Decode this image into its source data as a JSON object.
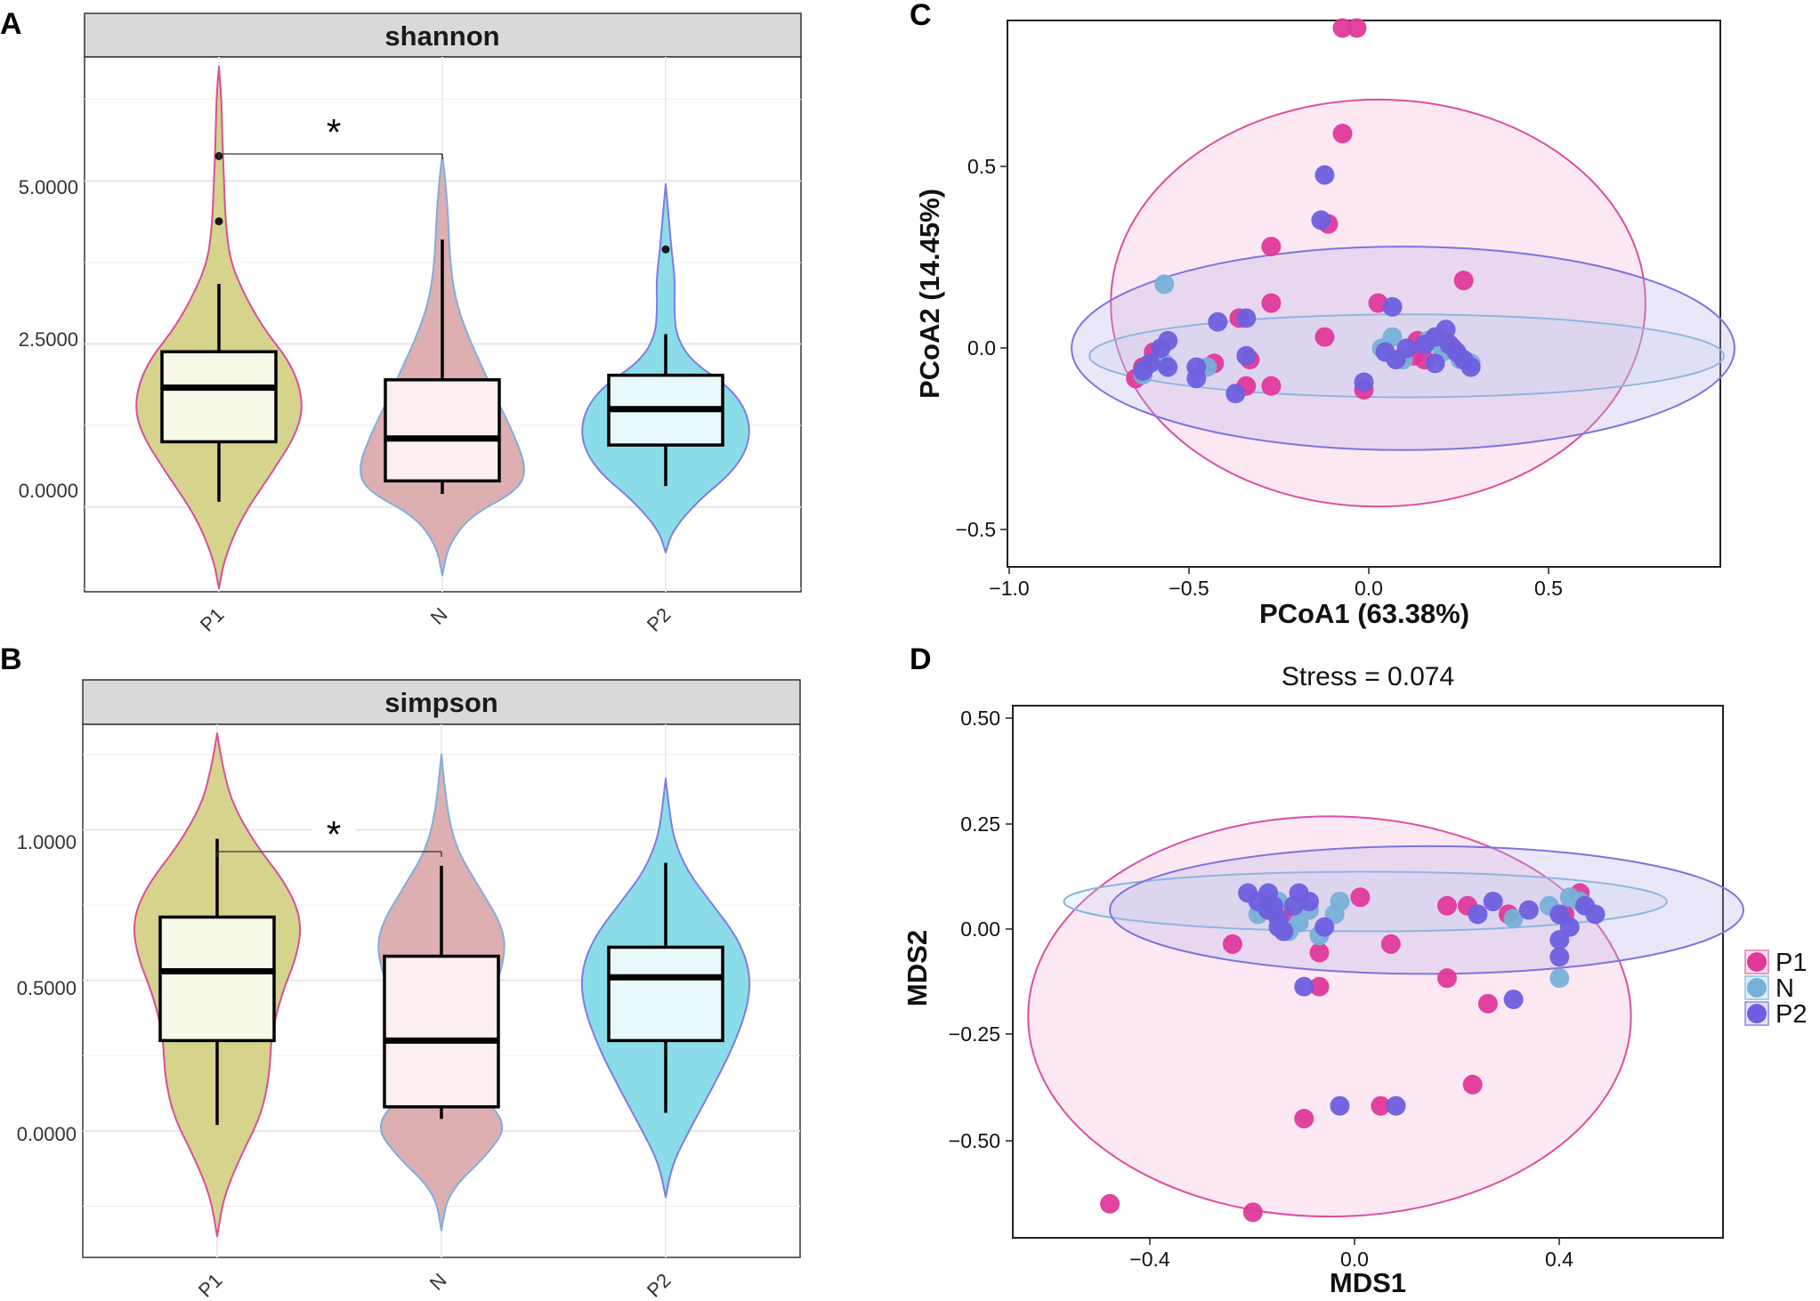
{
  "panels": {
    "A": {
      "letter": "A",
      "strip": "shannon",
      "signif": "*",
      "y_ticks": [
        "0.0000",
        "2.5000",
        "5.0000"
      ],
      "y_tick_values": [
        0,
        2.5,
        5
      ],
      "x_labels": [
        "P1",
        "N",
        "P2"
      ]
    },
    "B": {
      "letter": "B",
      "strip": "simpson",
      "signif": "*",
      "y_ticks": [
        "0.0000",
        "0.5000",
        "1.0000"
      ],
      "y_tick_values": [
        0,
        0.5,
        1
      ],
      "x_labels": [
        "P1",
        "N",
        "P2"
      ]
    },
    "C": {
      "letter": "C",
      "xlabel": "PCoA1 (63.38%)",
      "ylabel": "PCoA2 (14.45%)",
      "x_ticks": [
        "−1.0",
        "−0.5",
        "0.0",
        "0.5"
      ],
      "y_ticks": [
        "−0.5",
        "0.0",
        "0.5"
      ]
    },
    "D": {
      "letter": "D",
      "stress": "Stress = 0.074",
      "xlabel": "MDS1",
      "ylabel": "MDS2",
      "x_ticks": [
        "−0.4",
        "0.0",
        "0.4"
      ],
      "y_ticks": [
        "−0.50",
        "−0.25",
        "0.00",
        "0.25",
        "0.50"
      ]
    }
  },
  "legend": {
    "items": [
      {
        "label": "P1",
        "color": "#e0399a"
      },
      {
        "label": "N",
        "color": "#77b0d8"
      },
      {
        "label": "P2",
        "color": "#6e5fde"
      }
    ]
  },
  "colors": {
    "P1_violin": "#d5d38c",
    "P1_violin_stroke": "#d84f97",
    "N_violin": "#ddafb1",
    "N_violin_stroke": "#7faede",
    "P2_violin": "#8adde8",
    "P2_violin_stroke": "#7f7be4",
    "P1_box": "#f7f8e7",
    "N_box": "#fbeeef",
    "P2_box": "#e9f8fb",
    "strip_bg": "#d9d9d9",
    "grid": "#ebebeb"
  },
  "chart_data": [
    {
      "type": "violin",
      "panel": "A",
      "title": "shannon",
      "xlabel": "",
      "ylabel": "",
      "categories": [
        "P1",
        "N",
        "P2"
      ],
      "ylim": [
        -1.3,
        6.9
      ],
      "violins": [
        {
          "name": "P1",
          "min": 0.08,
          "q1": 1.0,
          "median": 1.83,
          "q3": 2.38,
          "max": 3.42,
          "outliers": [
            4.38,
            5.38
          ],
          "range": [
            -1.25,
            6.75
          ]
        },
        {
          "name": "N",
          "min": 0.2,
          "q1": 0.4,
          "median": 1.05,
          "q3": 1.95,
          "max": 4.1,
          "outliers": [],
          "range": [
            -1.05,
            5.4
          ]
        },
        {
          "name": "P2",
          "min": 0.32,
          "q1": 0.95,
          "median": 1.5,
          "q3": 2.02,
          "max": 2.65,
          "outliers": [
            3.95
          ],
          "range": [
            -0.7,
            4.95
          ]
        }
      ],
      "annotations": [
        {
          "text": "*",
          "between": [
            "P1",
            "N"
          ],
          "y": 5.55
        }
      ]
    },
    {
      "type": "violin",
      "panel": "B",
      "title": "simpson",
      "xlabel": "",
      "ylabel": "",
      "categories": [
        "P1",
        "N",
        "P2"
      ],
      "ylim": [
        -0.42,
        1.35
      ],
      "violins": [
        {
          "name": "P1",
          "min": 0.02,
          "q1": 0.3,
          "median": 0.53,
          "q3": 0.71,
          "max": 0.97,
          "outliers": [],
          "range": [
            -0.35,
            1.32
          ]
        },
        {
          "name": "N",
          "min": 0.04,
          "q1": 0.08,
          "median": 0.3,
          "q3": 0.58,
          "max": 0.88,
          "outliers": [],
          "range": [
            -0.33,
            1.25
          ]
        },
        {
          "name": "P2",
          "min": 0.06,
          "q1": 0.3,
          "median": 0.51,
          "q3": 0.61,
          "max": 0.89,
          "outliers": [],
          "range": [
            -0.22,
            1.17
          ]
        }
      ],
      "annotations": [
        {
          "text": "*",
          "between": [
            "P1",
            "N"
          ],
          "y": 0.97
        }
      ]
    },
    {
      "type": "scatter",
      "panel": "C",
      "xlabel": "PCoA1 (63.38%)",
      "ylabel": "PCoA2 (14.45%)",
      "xlim": [
        -1.0,
        1.0
      ],
      "ylim": [
        -0.6,
        0.85
      ],
      "series": [
        {
          "name": "P1",
          "points": [
            [
              -0.06,
              0.83
            ],
            [
              -0.02,
              0.83
            ],
            [
              -0.06,
              0.55
            ],
            [
              -0.1,
              0.31
            ],
            [
              -0.26,
              0.25
            ],
            [
              0.28,
              0.16
            ],
            [
              -0.26,
              0.1
            ],
            [
              0.04,
              0.1
            ],
            [
              -0.35,
              0.06
            ],
            [
              -0.11,
              0.01
            ],
            [
              -0.42,
              -0.06
            ],
            [
              -0.32,
              -0.05
            ],
            [
              -0.59,
              -0.03
            ],
            [
              -0.62,
              -0.07
            ],
            [
              -0.64,
              -0.1
            ],
            [
              -0.33,
              -0.12
            ],
            [
              -0.26,
              -0.12
            ],
            [
              0.0,
              -0.13
            ],
            [
              0.14,
              -0.04
            ],
            [
              0.15,
              0.0
            ],
            [
              0.25,
              -0.02
            ],
            [
              0.17,
              -0.05
            ]
          ]
        },
        {
          "name": "N",
          "points": [
            [
              -0.56,
              0.15
            ],
            [
              -0.56,
              -0.06
            ],
            [
              -0.44,
              -0.07
            ],
            [
              -0.62,
              -0.09
            ],
            [
              0.05,
              -0.02
            ],
            [
              0.08,
              0.01
            ],
            [
              0.11,
              -0.05
            ],
            [
              0.18,
              0.0
            ],
            [
              0.22,
              -0.03
            ],
            [
              0.27,
              -0.05
            ],
            [
              0.3,
              -0.06
            ]
          ]
        },
        {
          "name": "P2",
          "points": [
            [
              -0.11,
              0.44
            ],
            [
              -0.12,
              0.32
            ],
            [
              -0.41,
              0.05
            ],
            [
              -0.33,
              0.06
            ],
            [
              0.08,
              0.09
            ],
            [
              -0.55,
              0.0
            ],
            [
              -0.57,
              -0.02
            ],
            [
              -0.6,
              -0.06
            ],
            [
              -0.62,
              -0.08
            ],
            [
              -0.55,
              -0.07
            ],
            [
              -0.47,
              -0.07
            ],
            [
              -0.47,
              -0.1
            ],
            [
              -0.36,
              -0.14
            ],
            [
              -0.33,
              -0.04
            ],
            [
              0.0,
              -0.11
            ],
            [
              0.06,
              -0.03
            ],
            [
              0.09,
              -0.05
            ],
            [
              0.12,
              -0.02
            ],
            [
              0.17,
              -0.01
            ],
            [
              0.2,
              -0.06
            ],
            [
              0.2,
              0.01
            ],
            [
              0.23,
              0.03
            ],
            [
              0.24,
              -0.01
            ],
            [
              0.26,
              -0.03
            ],
            [
              0.28,
              -0.05
            ],
            [
              0.3,
              -0.07
            ]
          ]
        }
      ],
      "ellipses": [
        {
          "group": "P1",
          "center": [
            0.04,
            0.1
          ],
          "radii": [
            0.75,
            0.54
          ]
        },
        {
          "group": "N",
          "center": [
            0.12,
            -0.04
          ],
          "radii": [
            0.89,
            0.11
          ]
        },
        {
          "group": "P2",
          "center": [
            0.11,
            -0.02
          ],
          "radii": [
            0.93,
            0.27
          ]
        }
      ]
    },
    {
      "type": "scatter",
      "panel": "D",
      "title": "Stress = 0.074",
      "xlabel": "MDS1",
      "ylabel": "MDS2",
      "xlim": [
        -0.67,
        0.72
      ],
      "ylim": [
        -0.73,
        0.52
      ],
      "series": [
        {
          "name": "P1",
          "points": [
            [
              -0.48,
              -0.65
            ],
            [
              -0.2,
              -0.67
            ],
            [
              -0.1,
              -0.45
            ],
            [
              0.05,
              -0.42
            ],
            [
              0.23,
              -0.37
            ],
            [
              0.26,
              -0.18
            ],
            [
              0.18,
              -0.12
            ],
            [
              -0.07,
              -0.14
            ],
            [
              -0.24,
              -0.04
            ],
            [
              -0.07,
              -0.06
            ],
            [
              0.07,
              -0.04
            ],
            [
              0.01,
              0.07
            ],
            [
              0.18,
              0.05
            ],
            [
              0.22,
              0.05
            ],
            [
              0.3,
              0.03
            ],
            [
              0.41,
              0.03
            ],
            [
              0.44,
              0.08
            ],
            [
              -0.14,
              0.03
            ],
            [
              -0.17,
              0.05
            ]
          ]
        },
        {
          "name": "N",
          "points": [
            [
              0.4,
              -0.12
            ],
            [
              -0.04,
              0.03
            ],
            [
              -0.09,
              0.04
            ],
            [
              -0.11,
              0.01
            ],
            [
              -0.13,
              -0.01
            ],
            [
              -0.07,
              -0.02
            ],
            [
              -0.03,
              0.06
            ],
            [
              0.31,
              0.02
            ],
            [
              0.38,
              0.05
            ],
            [
              0.42,
              0.07
            ],
            [
              0.44,
              0.06
            ],
            [
              -0.15,
              0.06
            ],
            [
              -0.19,
              0.03
            ]
          ]
        },
        {
          "name": "P2",
          "points": [
            [
              -0.03,
              -0.42
            ],
            [
              0.08,
              -0.42
            ],
            [
              -0.1,
              -0.14
            ],
            [
              0.31,
              -0.17
            ],
            [
              0.4,
              -0.07
            ],
            [
              0.4,
              -0.03
            ],
            [
              0.4,
              0.03
            ],
            [
              0.42,
              0.0
            ],
            [
              0.45,
              0.05
            ],
            [
              0.47,
              0.03
            ],
            [
              0.24,
              0.03
            ],
            [
              0.27,
              0.06
            ],
            [
              0.34,
              0.04
            ],
            [
              -0.21,
              0.08
            ],
            [
              -0.19,
              0.06
            ],
            [
              -0.17,
              0.08
            ],
            [
              -0.16,
              0.05
            ],
            [
              -0.15,
              0.02
            ],
            [
              -0.14,
              -0.01
            ],
            [
              -0.12,
              0.05
            ],
            [
              -0.11,
              0.08
            ],
            [
              -0.09,
              0.06
            ],
            [
              -0.06,
              0.0
            ],
            [
              -0.15,
              0.0
            ],
            [
              -0.17,
              0.04
            ]
          ]
        }
      ],
      "ellipses": [
        {
          "group": "P1",
          "center": [
            -0.05,
            -0.21
          ],
          "radii": [
            0.59,
            0.47
          ]
        },
        {
          "group": "N",
          "center": [
            0.02,
            0.06
          ],
          "radii": [
            0.59,
            0.07
          ]
        },
        {
          "group": "P2",
          "center": [
            0.14,
            0.04
          ],
          "radii": [
            0.62,
            0.15
          ]
        }
      ]
    }
  ]
}
